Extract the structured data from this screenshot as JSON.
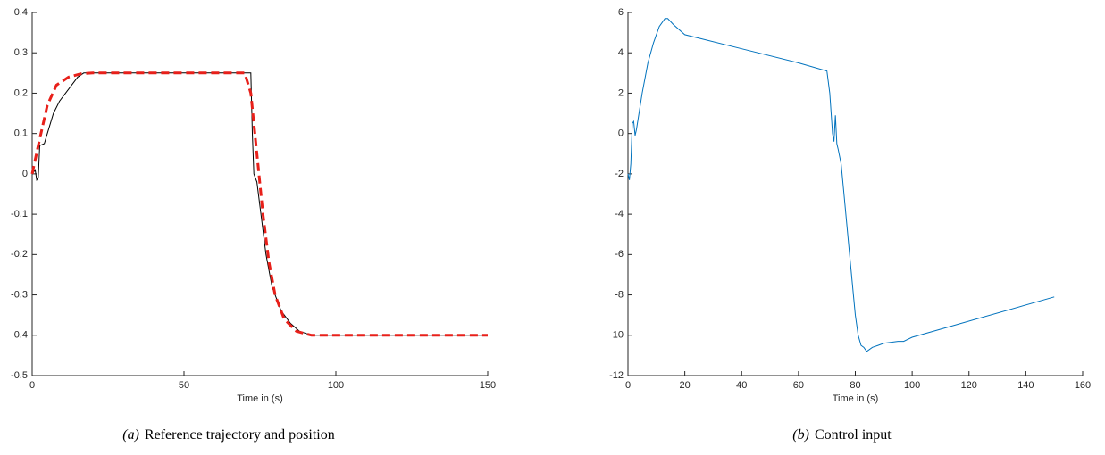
{
  "chart_data": [
    {
      "type": "line",
      "xlabel": "Time in (s)",
      "caption_label": "(a)",
      "caption": "Reference trajectory and position",
      "xlim": [
        0,
        150
      ],
      "xticks": [
        0,
        50,
        100,
        150
      ],
      "ylim": [
        -0.5,
        0.4
      ],
      "yticks": [
        -0.5,
        -0.4,
        -0.3,
        -0.2,
        -0.1,
        0,
        0.1,
        0.2,
        0.3,
        0.4
      ],
      "series": [
        {
          "color": "#000000",
          "dash": false,
          "x": [
            0,
            1,
            1.5,
            2,
            2.5,
            4,
            5,
            7,
            9,
            11,
            13,
            15,
            17,
            72,
            72.5,
            73,
            74,
            75,
            77,
            79,
            82,
            85,
            88,
            92,
            150
          ],
          "values": [
            0,
            0.01,
            -0.015,
            -0.01,
            0.07,
            0.075,
            0.1,
            0.15,
            0.18,
            0.2,
            0.22,
            0.24,
            0.25,
            0.25,
            0.1,
            0,
            -0.02,
            -0.08,
            -0.2,
            -0.28,
            -0.34,
            -0.37,
            -0.39,
            -0.4,
            -0.4
          ]
        },
        {
          "color": "#e8201a",
          "dash": true,
          "x": [
            0,
            2,
            5,
            8,
            12,
            16,
            20,
            70,
            72,
            74,
            76,
            78,
            80,
            83,
            87,
            92,
            150
          ],
          "values": [
            0,
            0.07,
            0.17,
            0.22,
            0.24,
            0.248,
            0.25,
            0.25,
            0.2,
            0.05,
            -0.1,
            -0.22,
            -0.3,
            -0.36,
            -0.39,
            -0.4,
            -0.4
          ]
        }
      ]
    },
    {
      "type": "line",
      "xlabel": "Time in (s)",
      "caption_label": "(b)",
      "caption": "Control input",
      "xlim": [
        0,
        160
      ],
      "xticks": [
        0,
        20,
        40,
        60,
        80,
        100,
        120,
        140,
        160
      ],
      "ylim": [
        -12,
        6
      ],
      "yticks": [
        -12,
        -10,
        -8,
        -6,
        -4,
        -2,
        0,
        2,
        4,
        6
      ],
      "series": [
        {
          "color": "#0072bd",
          "dash": false,
          "x": [
            0,
            0.5,
            1,
            1.5,
            2,
            2.5,
            3,
            5,
            7,
            9,
            11,
            13,
            14,
            16,
            20,
            40,
            60,
            70,
            71,
            72,
            72.5,
            73,
            73.5,
            74,
            75,
            76,
            78,
            80,
            81,
            82,
            83,
            84,
            86,
            88,
            90,
            95,
            97,
            100,
            150
          ],
          "values": [
            -2,
            -2.3,
            -1.5,
            0.5,
            0.6,
            -0.1,
            0.2,
            2,
            3.5,
            4.5,
            5.3,
            5.7,
            5.7,
            5.4,
            4.9,
            4.2,
            3.5,
            3.1,
            2,
            0,
            -0.4,
            0.9,
            -0.5,
            -0.8,
            -1.5,
            -3,
            -6,
            -9,
            -10,
            -10.5,
            -10.6,
            -10.8,
            -10.6,
            -10.5,
            -10.4,
            -10.3,
            -10.3,
            -10.1,
            -8.1
          ]
        }
      ]
    }
  ]
}
